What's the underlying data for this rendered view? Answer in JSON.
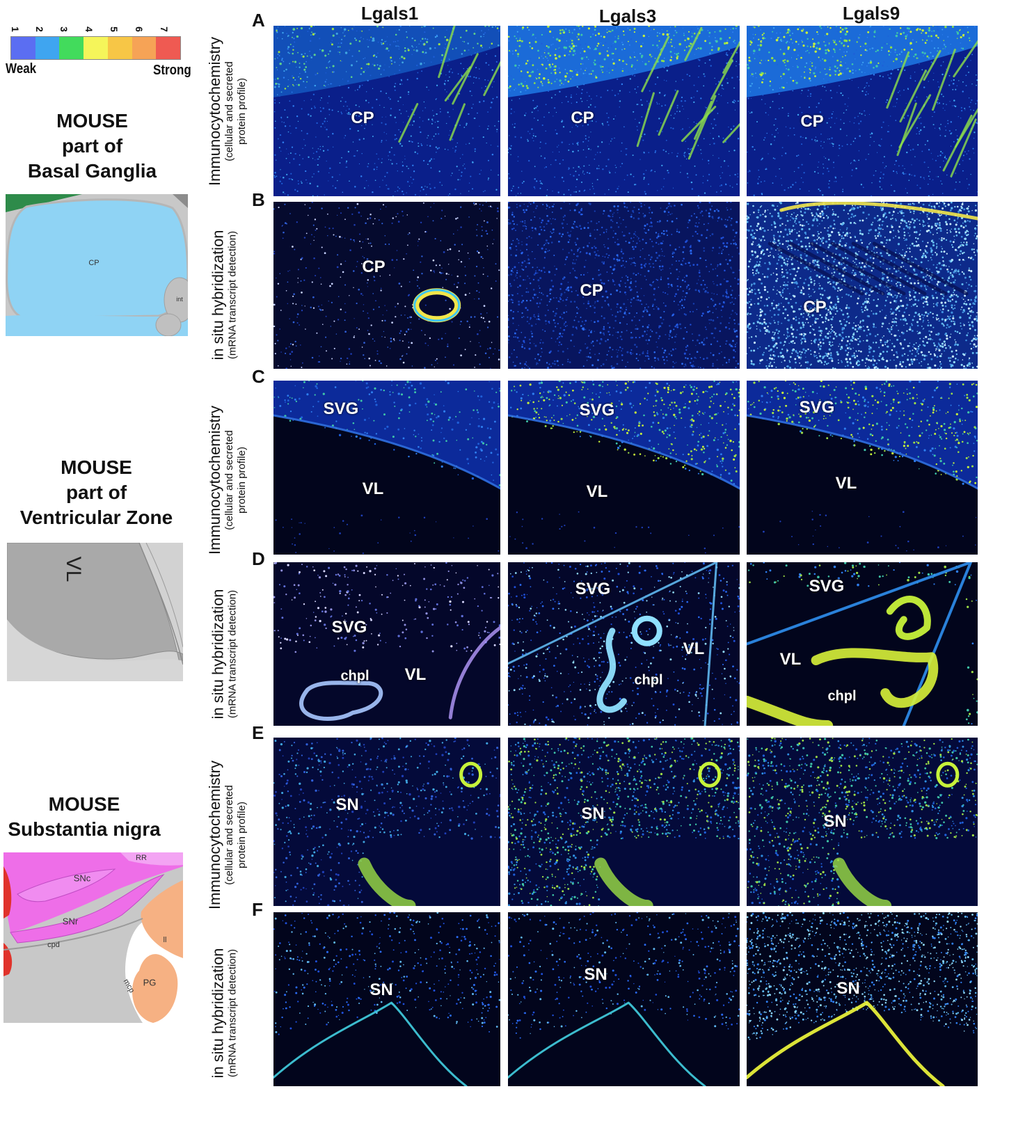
{
  "scale": {
    "numbers": [
      "1",
      "2",
      "3",
      "4",
      "5",
      "6",
      "7"
    ],
    "colors": [
      "#5b6ef2",
      "#3fa5f0",
      "#42db5c",
      "#f5f55a",
      "#f7c646",
      "#f6a356",
      "#ef5a52"
    ],
    "weak": "Weak",
    "strong": "Strong"
  },
  "sections": [
    {
      "line1": "MOUSE",
      "line2": "part of",
      "line3": "Basal Ganglia"
    },
    {
      "line1": "MOUSE",
      "line2": "part of",
      "line3": "Ventricular Zone"
    },
    {
      "line1": "MOUSE",
      "line2": "Substantia nigra"
    }
  ],
  "atlas": {
    "cp": "CP",
    "int": "int",
    "vl": "VL",
    "rr": "RR",
    "snc": "SNc",
    "snr": "SNr",
    "cpd": "cpd",
    "ll": "ll",
    "mcp": "mcp",
    "pg": "PG"
  },
  "columns": [
    "Lgals1",
    "Lgals3",
    "Lgals9"
  ],
  "rows": [
    {
      "letter": "A",
      "method": "Immunocytochemistry",
      "detail": "(cellular and secreted",
      "detail2": "protein profile)"
    },
    {
      "letter": "B",
      "method": "in situ hybridization",
      "detail": "(mRNA transcript detection)"
    },
    {
      "letter": "C",
      "method": "Immunocytochemistry",
      "detail": "(cellular and secreted",
      "detail2": "protein profile)"
    },
    {
      "letter": "D",
      "method": "in situ hybridization",
      "detail": "(mRNA transcript detection)"
    },
    {
      "letter": "E",
      "method": "Immunocytochemistry",
      "detail": "(cellular and secreted",
      "detail2": "protein profile)"
    },
    {
      "letter": "F",
      "method": "in situ hybridization",
      "detail": "(mRNA transcript detection)"
    }
  ],
  "panel_labels": {
    "cp": "CP",
    "svg": "SVG",
    "vl": "VL",
    "chpl": "chpl",
    "sn": "SN"
  }
}
